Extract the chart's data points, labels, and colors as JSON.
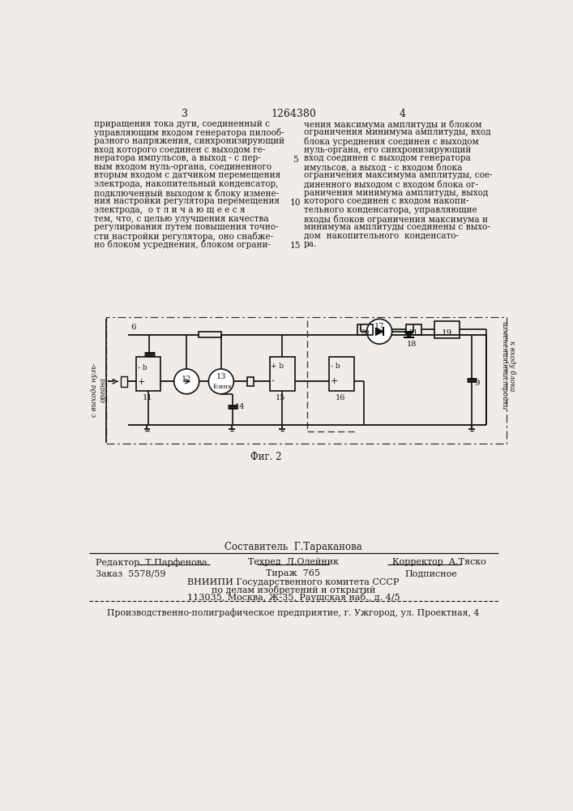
{
  "page_number_left": "3",
  "page_number_center": "1264380",
  "page_number_right": "4",
  "bg_color": "#f0ede8",
  "text_color": "#1a1a1a",
  "left_column_text": [
    "приращения тока дуги, соединенный с",
    "управляющим входом генератора пилооб-",
    "разного напряжения, синхронизирующий",
    "вход которого соединен с выходом ге-",
    "нератора импульсов, а выход - с пер-",
    "вым входом нуль-органа, соединенного",
    "вторым входом с датчиком перемещения",
    "электрода, накопительный конденсатор,",
    "подключенный выходом к блоку измене-",
    "ния настройки регулятора перемещения",
    "электрода,  о т л и ч а ю щ е е с я",
    "тем, что, с целью улучшения качества",
    "регулирования путем повышения точно-",
    "сти настройки регулятора, оно снабже-",
    "но блоком усреднения, блоком ограни-"
  ],
  "right_column_text": [
    "чения максимума амплитуды и блоком",
    "ограничения минимума амплитуды, вход",
    "блока усреднения соединен с выходом",
    "нуль-органа, его синхронизирующий",
    "вход соединен с выходом генератора",
    "имульсов, а выход - с входом блока",
    "ограничения максимума амплитуды, сое-",
    "диненного выходом с входом блока ог-",
    "раничения минимума амплитуды, выход",
    "которого соединен с входом накопи-",
    "тельного конденсатора, управляющие",
    "входы блоков ограничения максимума и",
    "минимума амплитуды соединены с выхо-",
    "дом  накопительного  конденсато-",
    "ра."
  ],
  "line_num_5_row": 4,
  "line_num_10_row": 9,
  "line_num_15_row": 14,
  "fig_caption": "Фиг. 2",
  "composer": "Составитель  Г.Тараканова",
  "editor_label": "Редактор  Т.Парфенова",
  "techred_label": "Техред  Л.Олейник",
  "corrector_label": "Корректор  А.Тяско",
  "order_text": "Заказ  5578/59",
  "tirage_text": "Тираж  765",
  "subscription_text": "Подписное",
  "vniipi_line1": "ВНИИПИ Государственного комитета СССР",
  "vniipi_line2": "по делам изобретений и открытий",
  "vniipi_line3": "113035, Москва, Ж-35, Раушская наб., д. 4/5",
  "production_text": "Производственно-полиграфическое предприятие, г. Ужгород, ул. Проектная, 4"
}
